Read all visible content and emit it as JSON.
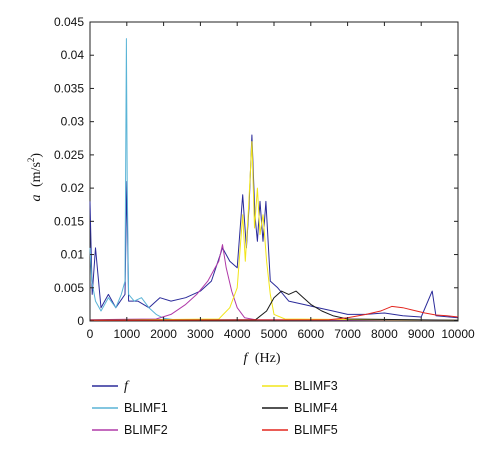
{
  "chart_data": {
    "type": "line",
    "xlabel_var": "f",
    "xlabel_unit": "(Hz)",
    "ylabel_var": "a",
    "ylabel_unit_prefix": "(m/s",
    "ylabel_unit_exp": "2",
    "ylabel_unit_suffix": ")",
    "xlim": [
      0,
      10000
    ],
    "ylim": [
      0,
      0.045
    ],
    "x_ticks": [
      "0",
      "1000",
      "2000",
      "3000",
      "4000",
      "5000",
      "6000",
      "7000",
      "8000",
      "9000",
      "10000"
    ],
    "y_ticks": [
      "0",
      "0.005",
      "0.01",
      "0.015",
      "0.02",
      "0.025",
      "0.03",
      "0.035",
      "0.04",
      "0.045"
    ],
    "grid": false,
    "legend_position": "bottom",
    "series": [
      {
        "name": "f",
        "color": "#2b2b9a",
        "points": [
          [
            0,
            0.018
          ],
          [
            60,
            0.004
          ],
          [
            150,
            0.011
          ],
          [
            300,
            0.002
          ],
          [
            500,
            0.004
          ],
          [
            700,
            0.002
          ],
          [
            950,
            0.004
          ],
          [
            1000,
            0.021
          ],
          [
            1050,
            0.003
          ],
          [
            1300,
            0.003
          ],
          [
            1600,
            0.002
          ],
          [
            1900,
            0.0035
          ],
          [
            2200,
            0.003
          ],
          [
            2600,
            0.0035
          ],
          [
            3000,
            0.0045
          ],
          [
            3300,
            0.006
          ],
          [
            3600,
            0.011
          ],
          [
            3800,
            0.009
          ],
          [
            4000,
            0.008
          ],
          [
            4150,
            0.019
          ],
          [
            4250,
            0.011
          ],
          [
            4320,
            0.017
          ],
          [
            4400,
            0.028
          ],
          [
            4480,
            0.016
          ],
          [
            4550,
            0.012
          ],
          [
            4620,
            0.018
          ],
          [
            4700,
            0.012
          ],
          [
            4780,
            0.018
          ],
          [
            4900,
            0.006
          ],
          [
            5100,
            0.005
          ],
          [
            5400,
            0.003
          ],
          [
            5800,
            0.0025
          ],
          [
            6200,
            0.002
          ],
          [
            6600,
            0.0015
          ],
          [
            7000,
            0.001
          ],
          [
            7500,
            0.001
          ],
          [
            8000,
            0.0012
          ],
          [
            8500,
            0.0008
          ],
          [
            9000,
            0.0006
          ],
          [
            9300,
            0.0045
          ],
          [
            9400,
            0.0008
          ],
          [
            10000,
            0.0005
          ]
        ]
      },
      {
        "name": "BLIMF1",
        "color": "#5ab4d6",
        "points": [
          [
            0,
            0.011
          ],
          [
            50,
            0.006
          ],
          [
            150,
            0.003
          ],
          [
            300,
            0.0015
          ],
          [
            500,
            0.0035
          ],
          [
            700,
            0.002
          ],
          [
            850,
            0.004
          ],
          [
            950,
            0.006
          ],
          [
            990,
            0.0425
          ],
          [
            1010,
            0.021
          ],
          [
            1050,
            0.004
          ],
          [
            1200,
            0.003
          ],
          [
            1400,
            0.0035
          ],
          [
            1600,
            0.002
          ],
          [
            1800,
            0.001
          ],
          [
            2000,
            0.0004
          ],
          [
            2300,
            0.0002
          ],
          [
            10000,
            0.0001
          ]
        ]
      },
      {
        "name": "BLIMF2",
        "color": "#b03aa8",
        "points": [
          [
            0,
            0.0002
          ],
          [
            1800,
            0.0003
          ],
          [
            2200,
            0.001
          ],
          [
            2600,
            0.0025
          ],
          [
            2900,
            0.004
          ],
          [
            3200,
            0.006
          ],
          [
            3400,
            0.008
          ],
          [
            3500,
            0.009
          ],
          [
            3600,
            0.0115
          ],
          [
            3700,
            0.008
          ],
          [
            3850,
            0.0045
          ],
          [
            4000,
            0.002
          ],
          [
            4200,
            0.0005
          ],
          [
            4500,
            0.0002
          ],
          [
            10000,
            0.0001
          ]
        ]
      },
      {
        "name": "BLIMF3",
        "color": "#f2e51a",
        "points": [
          [
            0,
            0.0001
          ],
          [
            3500,
            0.0003
          ],
          [
            3800,
            0.002
          ],
          [
            4000,
            0.005
          ],
          [
            4150,
            0.016
          ],
          [
            4220,
            0.009
          ],
          [
            4300,
            0.016
          ],
          [
            4400,
            0.027
          ],
          [
            4470,
            0.014
          ],
          [
            4550,
            0.02
          ],
          [
            4620,
            0.013
          ],
          [
            4700,
            0.016
          ],
          [
            4800,
            0.009
          ],
          [
            4900,
            0.004
          ],
          [
            5000,
            0.001
          ],
          [
            5300,
            0.0003
          ],
          [
            10000,
            0.0001
          ]
        ]
      },
      {
        "name": "BLIMF4",
        "color": "#1a1a1a",
        "points": [
          [
            0,
            0.0001
          ],
          [
            4500,
            0.0002
          ],
          [
            4800,
            0.0015
          ],
          [
            5000,
            0.0035
          ],
          [
            5200,
            0.0045
          ],
          [
            5400,
            0.004
          ],
          [
            5600,
            0.0045
          ],
          [
            5800,
            0.0035
          ],
          [
            6000,
            0.0025
          ],
          [
            6300,
            0.0015
          ],
          [
            6600,
            0.0008
          ],
          [
            7000,
            0.0003
          ],
          [
            10000,
            0.0001
          ]
        ]
      },
      {
        "name": "BLIMF5",
        "color": "#e3261f",
        "points": [
          [
            0,
            0.0001
          ],
          [
            6500,
            0.0002
          ],
          [
            7000,
            0.0005
          ],
          [
            7500,
            0.001
          ],
          [
            7900,
            0.0015
          ],
          [
            8200,
            0.0022
          ],
          [
            8500,
            0.002
          ],
          [
            8800,
            0.0016
          ],
          [
            9100,
            0.0012
          ],
          [
            9400,
            0.0009
          ],
          [
            9700,
            0.0008
          ],
          [
            10000,
            0.0006
          ]
        ]
      }
    ]
  }
}
